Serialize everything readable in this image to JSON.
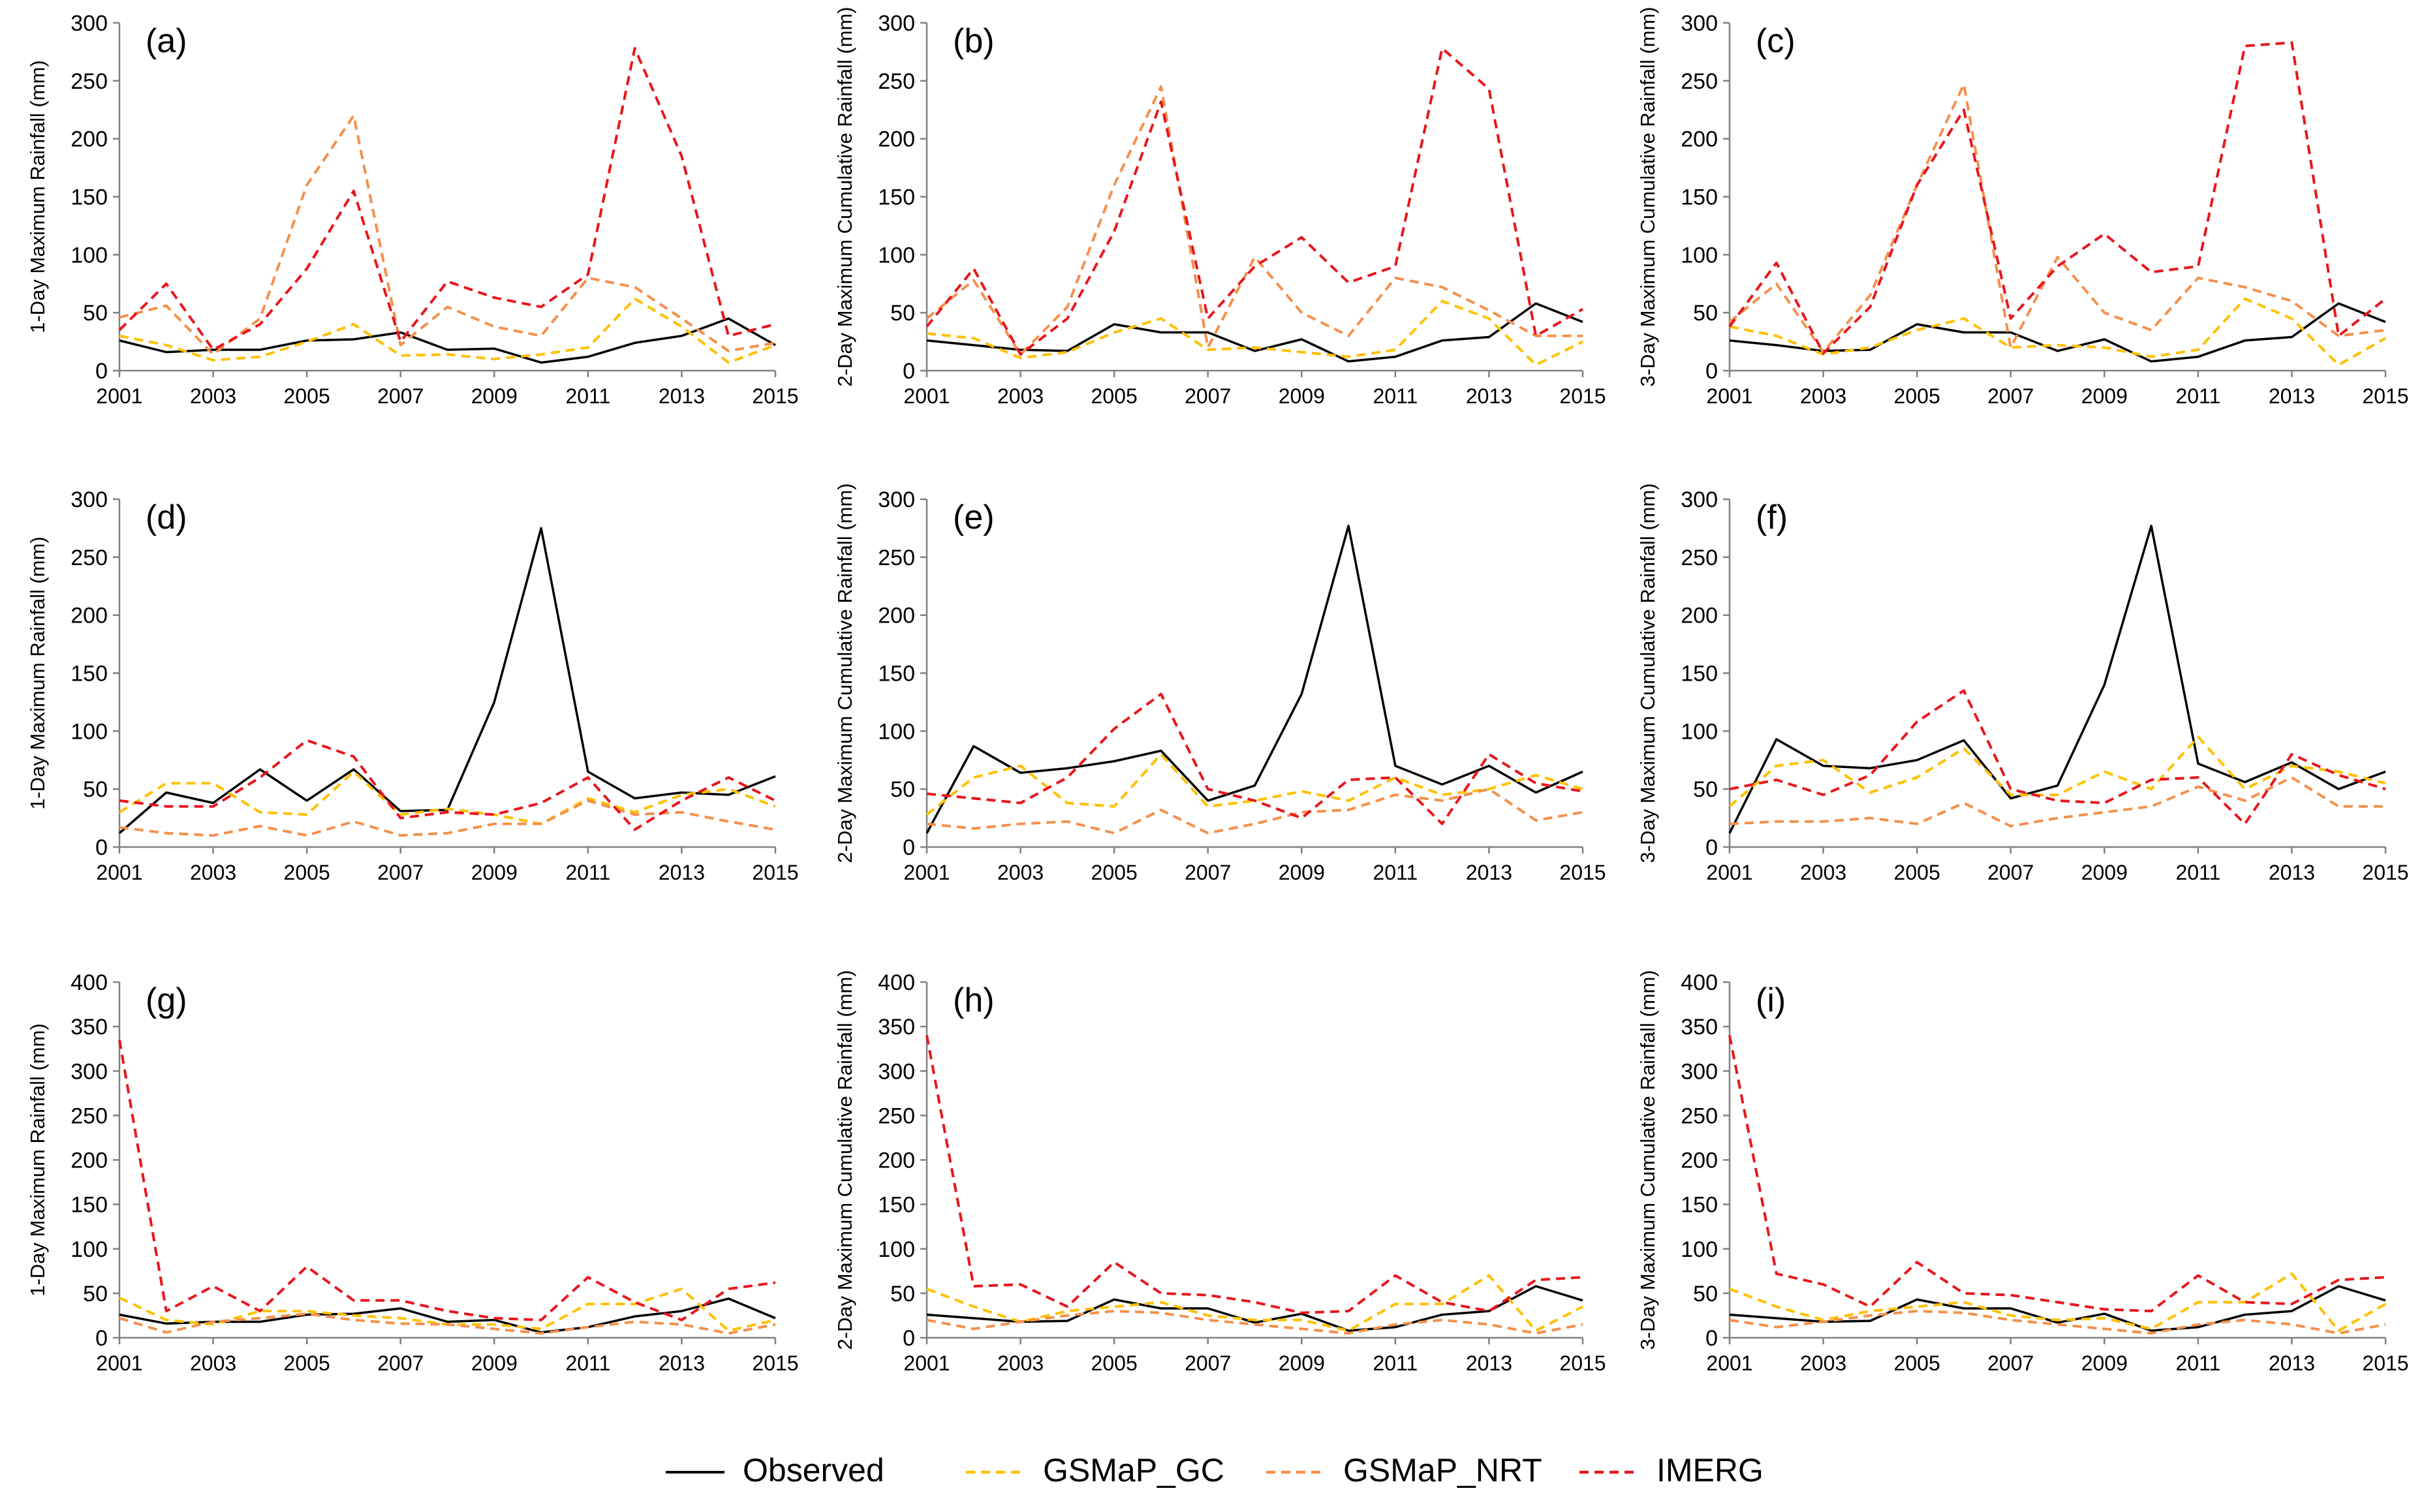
{
  "legend": {
    "placement": "bottom-center",
    "items": [
      {
        "label": "Observed",
        "color": "#000000",
        "dashed": false
      },
      {
        "label": "GSMaP_GC",
        "color": "#FFC000",
        "dashed": true
      },
      {
        "label": "GSMaP_NRT",
        "color": "#F4904C",
        "dashed": true
      },
      {
        "label": "IMERG",
        "color": "#E8161C",
        "dashed": true
      }
    ]
  },
  "chart_data": [
    {
      "panel": "(a)",
      "type": "line",
      "ylabel": "1-Day Maximum Rainfall (mm)",
      "x": [
        2001,
        2002,
        2003,
        2004,
        2005,
        2006,
        2007,
        2008,
        2009,
        2010,
        2011,
        2012,
        2013,
        2014,
        2015
      ],
      "x_tick_labels": [
        "2001",
        "2003",
        "2005",
        "2007",
        "2009",
        "2011",
        "2013",
        "2015"
      ],
      "ylim": [
        0,
        300
      ],
      "yticks": [
        0,
        50,
        100,
        150,
        200,
        250,
        300
      ],
      "series": [
        {
          "name": "Observed",
          "values": [
            26,
            16,
            18,
            18,
            26,
            27,
            33,
            18,
            19,
            7,
            12,
            24,
            30,
            45,
            22
          ]
        },
        {
          "name": "GSMaP_GC",
          "values": [
            30,
            22,
            9,
            12,
            25,
            40,
            13,
            14,
            10,
            14,
            20,
            62,
            38,
            7,
            22
          ]
        },
        {
          "name": "GSMaP_NRT",
          "values": [
            46,
            56,
            14,
            45,
            160,
            220,
            22,
            55,
            38,
            30,
            80,
            72,
            45,
            17,
            24
          ]
        },
        {
          "name": "IMERG",
          "values": [
            35,
            75,
            18,
            40,
            88,
            155,
            25,
            77,
            63,
            55,
            83,
            278,
            185,
            30,
            40
          ]
        }
      ]
    },
    {
      "panel": "(b)",
      "type": "line",
      "ylabel": "2-Day Maximum Cumulative Rainfall (mm)",
      "x": [
        2001,
        2002,
        2003,
        2004,
        2005,
        2006,
        2007,
        2008,
        2009,
        2010,
        2011,
        2012,
        2013,
        2014,
        2015
      ],
      "x_tick_labels": [
        "2001",
        "2003",
        "2005",
        "2007",
        "2009",
        "2011",
        "2013",
        "2015"
      ],
      "ylim": [
        0,
        300
      ],
      "yticks": [
        0,
        50,
        100,
        150,
        200,
        250,
        300
      ],
      "series": [
        {
          "name": "Observed",
          "values": [
            26,
            22,
            18,
            17,
            40,
            33,
            33,
            17,
            27,
            8,
            12,
            26,
            29,
            58,
            42
          ]
        },
        {
          "name": "GSMaP_GC",
          "values": [
            32,
            28,
            11,
            16,
            33,
            45,
            18,
            20,
            16,
            12,
            18,
            60,
            45,
            5,
            25
          ]
        },
        {
          "name": "GSMaP_NRT",
          "values": [
            45,
            78,
            14,
            55,
            160,
            245,
            20,
            98,
            50,
            30,
            80,
            72,
            52,
            30,
            30
          ]
        },
        {
          "name": "IMERG",
          "values": [
            38,
            88,
            14,
            45,
            120,
            232,
            45,
            90,
            115,
            76,
            90,
            278,
            243,
            30,
            53
          ]
        }
      ]
    },
    {
      "panel": "(c)",
      "type": "line",
      "ylabel": "3-Day Maximum Cumulative Rainfall (mm)",
      "x": [
        2001,
        2002,
        2003,
        2004,
        2005,
        2006,
        2007,
        2008,
        2009,
        2010,
        2011,
        2012,
        2013,
        2014,
        2015
      ],
      "x_tick_labels": [
        "2001",
        "2003",
        "2005",
        "2007",
        "2009",
        "2011",
        "2013",
        "2015"
      ],
      "ylim": [
        0,
        300
      ],
      "yticks": [
        0,
        50,
        100,
        150,
        200,
        250,
        300
      ],
      "series": [
        {
          "name": "Observed",
          "values": [
            26,
            22,
            17,
            18,
            40,
            33,
            33,
            17,
            27,
            8,
            12,
            26,
            29,
            58,
            42
          ]
        },
        {
          "name": "GSMaP_GC",
          "values": [
            38,
            30,
            14,
            20,
            35,
            45,
            20,
            22,
            20,
            12,
            18,
            62,
            45,
            5,
            28
          ]
        },
        {
          "name": "GSMaP_NRT",
          "values": [
            42,
            75,
            16,
            65,
            160,
            247,
            20,
            98,
            50,
            35,
            80,
            72,
            60,
            30,
            35
          ]
        },
        {
          "name": "IMERG",
          "values": [
            38,
            93,
            15,
            55,
            160,
            225,
            45,
            90,
            118,
            85,
            90,
            280,
            283,
            30,
            62
          ]
        }
      ]
    },
    {
      "panel": "(d)",
      "type": "line",
      "ylabel": "1-Day Maximum Rainfall (mm)",
      "x": [
        2001,
        2002,
        2003,
        2004,
        2005,
        2006,
        2007,
        2008,
        2009,
        2010,
        2011,
        2012,
        2013,
        2014,
        2015
      ],
      "x_tick_labels": [
        "2001",
        "2003",
        "2005",
        "2007",
        "2009",
        "2011",
        "2013",
        "2015"
      ],
      "ylim": [
        0,
        300
      ],
      "yticks": [
        0,
        50,
        100,
        150,
        200,
        250,
        300
      ],
      "series": [
        {
          "name": "Observed",
          "values": [
            12,
            47,
            38,
            67,
            40,
            67,
            31,
            32,
            125,
            275,
            65,
            42,
            47,
            45,
            61
          ]
        },
        {
          "name": "GSMaP_GC",
          "values": [
            30,
            55,
            55,
            30,
            28,
            65,
            28,
            33,
            28,
            20,
            42,
            30,
            45,
            50,
            35
          ]
        },
        {
          "name": "GSMaP_NRT",
          "values": [
            17,
            12,
            10,
            18,
            10,
            22,
            10,
            12,
            20,
            20,
            40,
            28,
            30,
            22,
            15
          ]
        },
        {
          "name": "IMERG",
          "values": [
            40,
            35,
            35,
            60,
            92,
            78,
            25,
            30,
            28,
            38,
            60,
            15,
            40,
            60,
            40
          ]
        }
      ]
    },
    {
      "panel": "(e)",
      "type": "line",
      "ylabel": "2-Day Maximum Cumulative Rainfall (mm)",
      "x": [
        2001,
        2002,
        2003,
        2004,
        2005,
        2006,
        2007,
        2008,
        2009,
        2010,
        2011,
        2012,
        2013,
        2014,
        2015
      ],
      "x_tick_labels": [
        "2001",
        "2003",
        "2005",
        "2007",
        "2009",
        "2011",
        "2013",
        "2015"
      ],
      "ylim": [
        0,
        300
      ],
      "yticks": [
        0,
        50,
        100,
        150,
        200,
        250,
        300
      ],
      "series": [
        {
          "name": "Observed",
          "values": [
            12,
            87,
            64,
            68,
            74,
            83,
            40,
            53,
            132,
            277,
            70,
            54,
            70,
            47,
            65
          ]
        },
        {
          "name": "GSMaP_GC",
          "values": [
            28,
            60,
            70,
            38,
            35,
            80,
            35,
            40,
            48,
            40,
            60,
            45,
            50,
            62,
            50
          ]
        },
        {
          "name": "GSMaP_NRT",
          "values": [
            20,
            16,
            20,
            22,
            12,
            32,
            12,
            20,
            30,
            32,
            45,
            40,
            50,
            23,
            30
          ]
        },
        {
          "name": "IMERG",
          "values": [
            46,
            42,
            38,
            60,
            102,
            132,
            50,
            40,
            25,
            58,
            60,
            20,
            80,
            55,
            48
          ]
        }
      ]
    },
    {
      "panel": "(f)",
      "type": "line",
      "ylabel": "3-Day Maximum Cumulative Rainfall (mm)",
      "x": [
        2001,
        2002,
        2003,
        2004,
        2005,
        2006,
        2007,
        2008,
        2009,
        2010,
        2011,
        2012,
        2013,
        2014,
        2015
      ],
      "x_tick_labels": [
        "2001",
        "2003",
        "2005",
        "2007",
        "2009",
        "2011",
        "2013",
        "2015"
      ],
      "ylim": [
        0,
        300
      ],
      "yticks": [
        0,
        50,
        100,
        150,
        200,
        250,
        300
      ],
      "series": [
        {
          "name": "Observed",
          "values": [
            12,
            93,
            70,
            68,
            75,
            92,
            42,
            53,
            140,
            277,
            72,
            56,
            73,
            50,
            65
          ]
        },
        {
          "name": "GSMaP_GC",
          "values": [
            35,
            70,
            75,
            47,
            60,
            85,
            45,
            45,
            65,
            50,
            95,
            50,
            70,
            65,
            55
          ]
        },
        {
          "name": "GSMaP_NRT",
          "values": [
            20,
            22,
            22,
            25,
            20,
            38,
            18,
            25,
            30,
            35,
            52,
            40,
            60,
            35,
            35
          ]
        },
        {
          "name": "IMERG",
          "values": [
            50,
            58,
            45,
            62,
            108,
            135,
            50,
            40,
            38,
            58,
            60,
            20,
            80,
            62,
            50
          ]
        }
      ]
    },
    {
      "panel": "(g)",
      "type": "line",
      "ylabel": "1-Day Maximum Rainfall (mm)",
      "x": [
        2001,
        2002,
        2003,
        2004,
        2005,
        2006,
        2007,
        2008,
        2009,
        2010,
        2011,
        2012,
        2013,
        2014,
        2015
      ],
      "x_tick_labels": [
        "2001",
        "2003",
        "2005",
        "2007",
        "2009",
        "2011",
        "2013",
        "2015"
      ],
      "ylim": [
        0,
        400
      ],
      "yticks": [
        0,
        50,
        100,
        150,
        200,
        250,
        300,
        350,
        400
      ],
      "series": [
        {
          "name": "Observed",
          "values": [
            26,
            16,
            18,
            18,
            26,
            27,
            33,
            18,
            20,
            6,
            12,
            24,
            30,
            44,
            22
          ]
        },
        {
          "name": "GSMaP_GC",
          "values": [
            45,
            20,
            15,
            30,
            30,
            25,
            22,
            15,
            15,
            10,
            38,
            38,
            55,
            8,
            20
          ]
        },
        {
          "name": "GSMaP_NRT",
          "values": [
            22,
            6,
            18,
            22,
            27,
            20,
            16,
            15,
            10,
            5,
            12,
            18,
            15,
            5,
            15
          ]
        },
        {
          "name": "IMERG",
          "values": [
            335,
            30,
            58,
            30,
            80,
            42,
            42,
            30,
            22,
            20,
            68,
            40,
            20,
            55,
            62
          ]
        }
      ]
    },
    {
      "panel": "(h)",
      "type": "line",
      "ylabel": "2-Day Maximum Cumulative Rainfall (mm)",
      "x": [
        2001,
        2002,
        2003,
        2004,
        2005,
        2006,
        2007,
        2008,
        2009,
        2010,
        2011,
        2012,
        2013,
        2014,
        2015
      ],
      "x_tick_labels": [
        "2001",
        "2003",
        "2005",
        "2007",
        "2009",
        "2011",
        "2013",
        "2015"
      ],
      "ylim": [
        0,
        400
      ],
      "yticks": [
        0,
        50,
        100,
        150,
        200,
        250,
        300,
        350,
        400
      ],
      "series": [
        {
          "name": "Observed",
          "values": [
            26,
            22,
            18,
            19,
            43,
            33,
            33,
            17,
            27,
            8,
            12,
            26,
            30,
            58,
            42
          ]
        },
        {
          "name": "GSMaP_GC",
          "values": [
            55,
            35,
            18,
            30,
            35,
            40,
            25,
            20,
            20,
            8,
            38,
            38,
            70,
            8,
            35
          ]
        },
        {
          "name": "GSMaP_NRT",
          "values": [
            20,
            10,
            18,
            25,
            30,
            28,
            20,
            15,
            10,
            5,
            15,
            20,
            15,
            5,
            15
          ]
        },
        {
          "name": "IMERG",
          "values": [
            340,
            58,
            60,
            35,
            85,
            50,
            48,
            40,
            28,
            30,
            70,
            40,
            30,
            65,
            68
          ]
        }
      ]
    },
    {
      "panel": "(i)",
      "type": "line",
      "ylabel": "3-Day Maximum Cumulative Rainfall (mm)",
      "x": [
        2001,
        2002,
        2003,
        2004,
        2005,
        2006,
        2007,
        2008,
        2009,
        2010,
        2011,
        2012,
        2013,
        2014,
        2015
      ],
      "x_tick_labels": [
        "2001",
        "2003",
        "2005",
        "2007",
        "2009",
        "2011",
        "2013",
        "2015"
      ],
      "ylim": [
        0,
        400
      ],
      "yticks": [
        0,
        50,
        100,
        150,
        200,
        250,
        300,
        350,
        400
      ],
      "series": [
        {
          "name": "Observed",
          "values": [
            26,
            22,
            18,
            19,
            43,
            33,
            33,
            17,
            27,
            8,
            12,
            26,
            30,
            58,
            42
          ]
        },
        {
          "name": "GSMaP_GC",
          "values": [
            55,
            35,
            20,
            30,
            35,
            40,
            25,
            20,
            22,
            10,
            40,
            40,
            72,
            8,
            38
          ]
        },
        {
          "name": "GSMaP_NRT",
          "values": [
            20,
            12,
            18,
            25,
            30,
            28,
            20,
            15,
            10,
            5,
            15,
            20,
            15,
            5,
            15
          ]
        },
        {
          "name": "IMERG",
          "values": [
            340,
            72,
            60,
            35,
            85,
            50,
            48,
            40,
            32,
            30,
            70,
            40,
            38,
            65,
            68
          ]
        }
      ]
    }
  ]
}
